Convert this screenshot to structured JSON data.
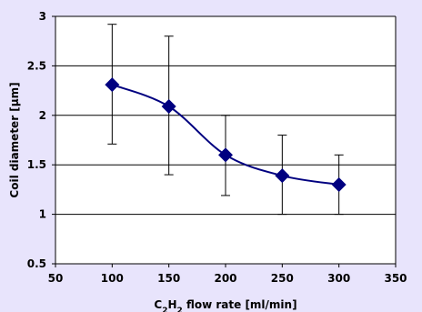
{
  "chart_data": {
    "type": "line",
    "title": "",
    "xlabel_parts": {
      "c1": "C",
      "sub1": "2",
      "h": "H",
      "sub2": "2",
      "rest": " flow rate [ml/min]"
    },
    "ylabel": "Coil diameter [μm]",
    "xlim": [
      50,
      350
    ],
    "ylim": [
      0.5,
      3
    ],
    "xticks": [
      50,
      100,
      150,
      200,
      250,
      300,
      350
    ],
    "yticks": [
      0.5,
      1,
      1.5,
      2,
      2.5,
      3
    ],
    "grid": {
      "horizontal": true,
      "vertical": false
    },
    "legend": "none",
    "series": [
      {
        "x": [
          100,
          150,
          200,
          250,
          300
        ],
        "y": [
          2.31,
          2.09,
          1.6,
          1.39,
          1.3
        ],
        "err_low": [
          1.71,
          1.4,
          1.19,
          1.0,
          1.0
        ],
        "err_high": [
          2.92,
          2.8,
          2.0,
          1.8,
          1.6
        ],
        "color": "#000080",
        "marker": "diamond",
        "smooth": true
      }
    ]
  },
  "colors": {
    "plot_bg": "#ffffff",
    "page_bg": "#e8e4fc",
    "line": "#000080"
  }
}
